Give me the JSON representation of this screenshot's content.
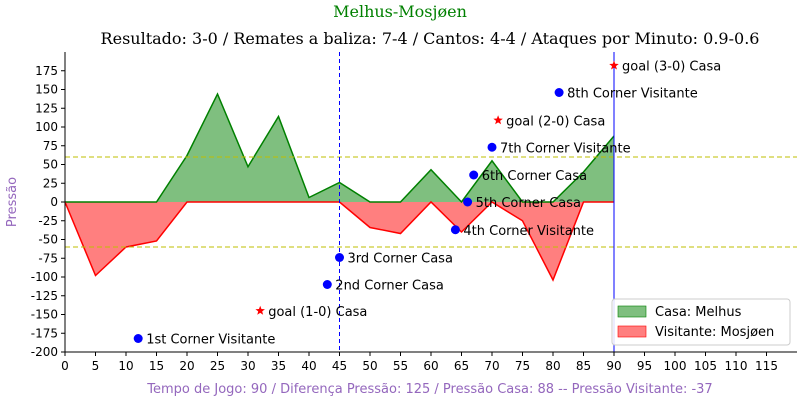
{
  "chart_data": {
    "type": "area",
    "title": "Melhus-Mosjøen",
    "subtitle": "Resultado: 3-0 / Remates a baliza: 7-4 / Cantos: 4-4 / Ataques por Minuto: 0.9-0.6",
    "ylabel": "Pressão",
    "xlabel": "Tempo de Jogo: 90 / Diferença Pressão: 125 / Pressão Casa: 88 -- Pressão Visitante: -37",
    "xlim": [
      0,
      120
    ],
    "ylim": [
      -200,
      200
    ],
    "x_ticks": [
      0,
      5,
      10,
      15,
      20,
      25,
      30,
      35,
      40,
      45,
      50,
      55,
      60,
      65,
      70,
      75,
      80,
      85,
      90,
      95,
      100,
      105,
      110,
      115
    ],
    "y_ticks": [
      -200,
      -175,
      -150,
      -125,
      -100,
      -75,
      -50,
      -25,
      0,
      25,
      50,
      75,
      100,
      125,
      150,
      175
    ],
    "x": [
      0,
      5,
      10,
      15,
      20,
      25,
      30,
      35,
      40,
      45,
      50,
      55,
      60,
      65,
      70,
      75,
      80,
      85,
      90
    ],
    "values": [
      0,
      -98,
      -60,
      -52,
      62,
      144,
      47,
      114,
      6,
      26,
      -34,
      -42,
      43,
      -40,
      55,
      -25,
      -104,
      40,
      88
    ],
    "positive_color": "#008000",
    "positive_fill": "#7fbf7f",
    "negative_color": "#ff0000",
    "negative_fill": "#ff7f7f",
    "series": [
      {
        "name": "Casa: Melhus",
        "color": "#7fbf7f"
      },
      {
        "name": "Visitante: Mosjøen",
        "color": "#ff7f7f"
      }
    ],
    "hlines": [
      60,
      -60
    ],
    "hline_color": "#bfbf00",
    "vlines": [
      {
        "x": 45,
        "style": "dashed",
        "color": "#0000ff"
      },
      {
        "x": 90,
        "style": "solid",
        "color": "#0000ff"
      }
    ],
    "events": [
      {
        "x": 12,
        "y": -182,
        "marker": "dot",
        "color": "#0000ff",
        "label": "1st Corner Visitante"
      },
      {
        "x": 32,
        "y": -145,
        "marker": "star",
        "color": "#ff0000",
        "label": "goal (1-0) Casa"
      },
      {
        "x": 43,
        "y": -110,
        "marker": "dot",
        "color": "#0000ff",
        "label": "2nd Corner Casa"
      },
      {
        "x": 45,
        "y": -74,
        "marker": "dot",
        "color": "#0000ff",
        "label": "3rd Corner Casa"
      },
      {
        "x": 64,
        "y": -37,
        "marker": "dot",
        "color": "#0000ff",
        "label": "4th Corner Visitante"
      },
      {
        "x": 66,
        "y": 0,
        "marker": "dot",
        "color": "#0000ff",
        "label": "5th Corner Casa"
      },
      {
        "x": 67,
        "y": 36,
        "marker": "dot",
        "color": "#0000ff",
        "label": "6th Corner Casa"
      },
      {
        "x": 70,
        "y": 73,
        "marker": "dot",
        "color": "#0000ff",
        "label": "7th Corner Visitante"
      },
      {
        "x": 71,
        "y": 109,
        "marker": "star",
        "color": "#ff0000",
        "label": "goal (2-0) Casa"
      },
      {
        "x": 81,
        "y": 146,
        "marker": "dot",
        "color": "#0000ff",
        "label": "8th Corner Visitante"
      },
      {
        "x": 90,
        "y": 182,
        "marker": "star",
        "color": "#ff0000",
        "label": "goal (3-0) Casa"
      }
    ],
    "legend_position": "bottom-right",
    "grid": false,
    "title_color": "#008000",
    "label_color": "#9467bd"
  }
}
